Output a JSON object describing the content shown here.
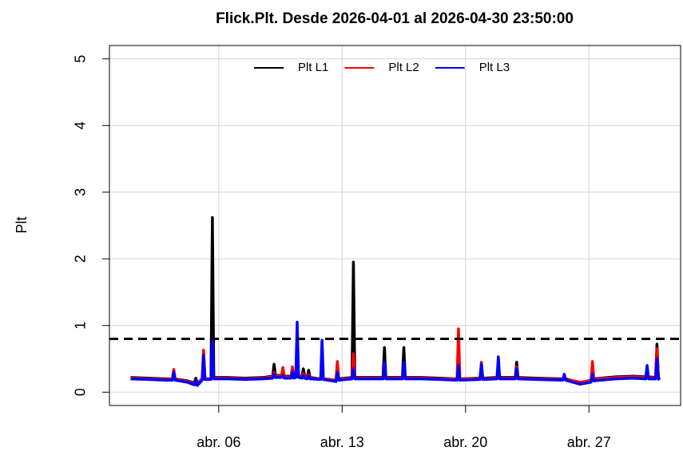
{
  "chart_data": {
    "type": "line",
    "title": "Flick.Plt. Desde  2026-04-01  al  2026-04-30 23:50:00",
    "y_label": "Plt",
    "x": [
      1.0,
      2.0,
      3.0,
      3.37,
      3.45,
      3.53,
      4.2,
      4.62,
      4.7,
      4.78,
      5.06,
      5.14,
      5.22,
      5.56,
      5.64,
      5.72,
      6.5,
      7.5,
      8.5,
      9.06,
      9.14,
      9.22,
      9.56,
      9.64,
      9.72,
      10.1,
      10.18,
      10.26,
      10.37,
      10.45,
      10.53,
      10.72,
      10.8,
      10.88,
      11.02,
      11.1,
      11.18,
      11.78,
      11.86,
      11.94,
      12.65,
      12.73,
      12.81,
      13.56,
      13.64,
      13.72,
      14.5,
      15.32,
      15.4,
      15.48,
      16.42,
      16.5,
      16.58,
      17.5,
      18.5,
      19.52,
      19.6,
      19.68,
      20.82,
      20.9,
      20.98,
      21.78,
      21.86,
      21.94,
      22.82,
      22.9,
      22.98,
      24.0,
      25.52,
      25.6,
      25.68,
      26.5,
      27.12,
      27.2,
      27.28,
      28.5,
      29.5,
      30.22,
      30.3,
      30.38,
      30.78,
      30.86,
      30.94,
      31.0
    ],
    "series": [
      {
        "name": "Plt L1",
        "color": "#000000",
        "values": [
          0.22,
          0.21,
          0.2,
          0.2,
          0.24,
          0.2,
          0.17,
          0.14,
          0.21,
          0.13,
          0.2,
          0.6,
          0.2,
          0.2,
          2.62,
          0.22,
          0.22,
          0.21,
          0.22,
          0.24,
          0.42,
          0.25,
          0.25,
          0.3,
          0.24,
          0.24,
          0.3,
          0.23,
          0.25,
          0.45,
          0.24,
          0.24,
          0.35,
          0.24,
          0.22,
          0.33,
          0.22,
          0.2,
          0.3,
          0.2,
          0.18,
          0.42,
          0.2,
          0.22,
          1.95,
          0.22,
          0.22,
          0.22,
          0.67,
          0.22,
          0.22,
          0.67,
          0.22,
          0.22,
          0.21,
          0.2,
          0.36,
          0.2,
          0.21,
          0.38,
          0.21,
          0.22,
          0.3,
          0.22,
          0.22,
          0.45,
          0.22,
          0.21,
          0.2,
          0.24,
          0.2,
          0.14,
          0.18,
          0.3,
          0.2,
          0.23,
          0.24,
          0.23,
          0.3,
          0.23,
          0.22,
          0.72,
          0.22,
          0.2
        ]
      },
      {
        "name": "Plt L2",
        "color": "#ff0000",
        "values": [
          0.21,
          0.2,
          0.19,
          0.2,
          0.34,
          0.2,
          0.16,
          0.13,
          0.17,
          0.12,
          0.2,
          0.63,
          0.2,
          0.2,
          0.5,
          0.21,
          0.21,
          0.2,
          0.21,
          0.23,
          0.3,
          0.24,
          0.24,
          0.37,
          0.23,
          0.23,
          0.38,
          0.22,
          0.24,
          0.5,
          0.23,
          0.23,
          0.28,
          0.23,
          0.21,
          0.26,
          0.21,
          0.2,
          0.25,
          0.2,
          0.18,
          0.46,
          0.19,
          0.21,
          0.58,
          0.21,
          0.21,
          0.21,
          0.3,
          0.21,
          0.21,
          0.3,
          0.21,
          0.21,
          0.2,
          0.2,
          0.95,
          0.2,
          0.2,
          0.45,
          0.2,
          0.21,
          0.3,
          0.21,
          0.21,
          0.38,
          0.21,
          0.2,
          0.19,
          0.22,
          0.19,
          0.15,
          0.17,
          0.46,
          0.19,
          0.22,
          0.23,
          0.22,
          0.3,
          0.22,
          0.21,
          0.65,
          0.21,
          0.19
        ]
      },
      {
        "name": "Plt L3",
        "color": "#0000ff",
        "values": [
          0.2,
          0.19,
          0.18,
          0.18,
          0.3,
          0.18,
          0.15,
          0.11,
          0.18,
          0.1,
          0.18,
          0.55,
          0.19,
          0.19,
          0.78,
          0.2,
          0.2,
          0.19,
          0.2,
          0.21,
          0.27,
          0.22,
          0.22,
          0.25,
          0.21,
          0.21,
          0.3,
          0.21,
          0.22,
          1.05,
          0.22,
          0.21,
          0.25,
          0.21,
          0.2,
          0.24,
          0.2,
          0.19,
          0.78,
          0.19,
          0.16,
          0.3,
          0.18,
          0.2,
          0.35,
          0.2,
          0.2,
          0.2,
          0.45,
          0.2,
          0.2,
          0.45,
          0.2,
          0.2,
          0.19,
          0.18,
          0.4,
          0.18,
          0.19,
          0.42,
          0.19,
          0.2,
          0.53,
          0.2,
          0.2,
          0.35,
          0.2,
          0.19,
          0.18,
          0.27,
          0.18,
          0.12,
          0.15,
          0.27,
          0.17,
          0.2,
          0.21,
          0.2,
          0.4,
          0.2,
          0.2,
          0.5,
          0.2,
          0.18
        ]
      }
    ],
    "threshold": 0.8,
    "xlim": [
      -0.2,
      32.2
    ],
    "xticks": [
      {
        "value": 6,
        "label": "abr. 06"
      },
      {
        "value": 13,
        "label": "abr. 13"
      },
      {
        "value": 20,
        "label": "abr. 20"
      },
      {
        "value": 27,
        "label": "abr. 27"
      }
    ],
    "ylim": [
      -0.2,
      5.2
    ],
    "yticks": [
      0,
      1,
      2,
      3,
      4,
      5
    ],
    "grid": true,
    "legend": "top"
  }
}
